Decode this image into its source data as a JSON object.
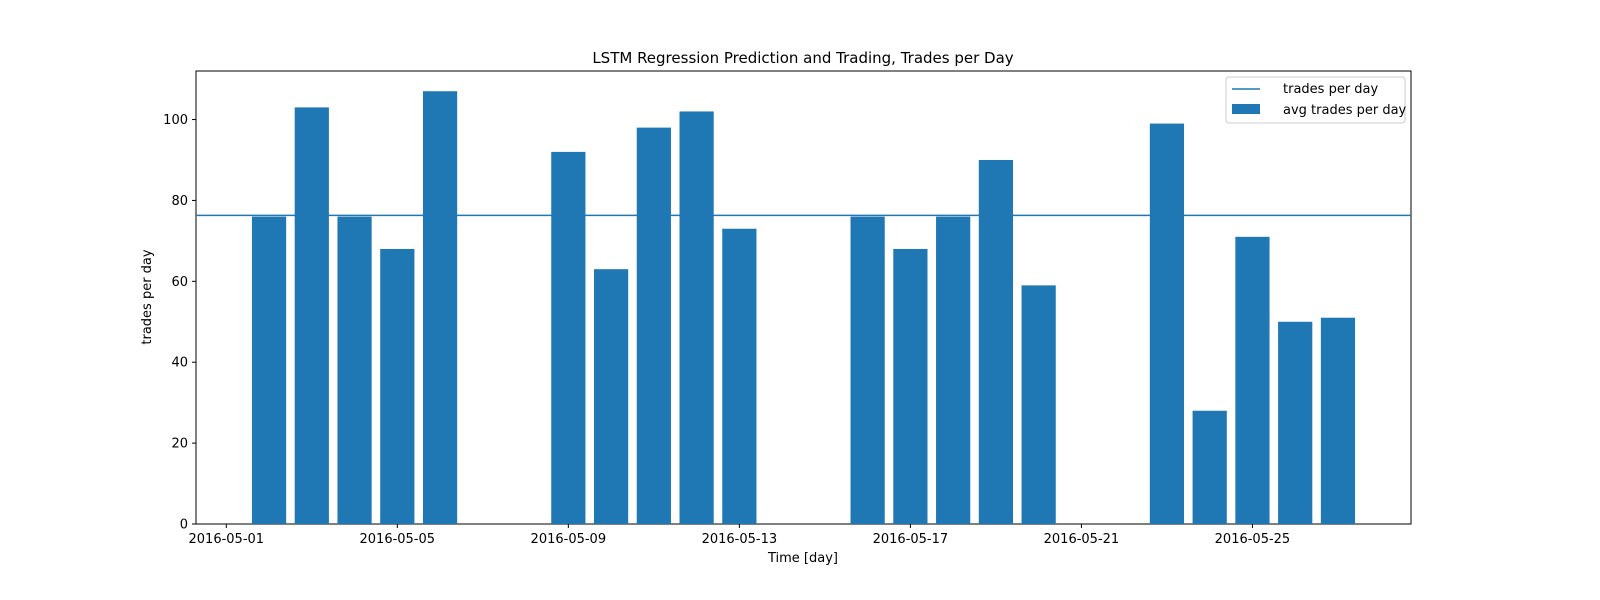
{
  "chart_data": {
    "type": "bar",
    "title": "LSTM Regression Prediction and Trading, Trades per Day",
    "xlabel": "Time [day]",
    "ylabel": "trades per day",
    "ylim": [
      0,
      112
    ],
    "xlim": [
      "2016-04-30T07:00",
      "2016-05-28T17:00"
    ],
    "yticks": [
      0,
      20,
      40,
      60,
      80,
      100
    ],
    "xticks": [
      "2016-05-01",
      "2016-05-05",
      "2016-05-09",
      "2016-05-13",
      "2016-05-17",
      "2016-05-21",
      "2016-05-25"
    ],
    "bar_color": "#1f77b4",
    "bars": [
      {
        "x": "2016-05-02",
        "y": 76
      },
      {
        "x": "2016-05-03",
        "y": 103
      },
      {
        "x": "2016-05-04",
        "y": 76
      },
      {
        "x": "2016-05-05",
        "y": 68
      },
      {
        "x": "2016-05-06",
        "y": 107
      },
      {
        "x": "2016-05-09",
        "y": 92
      },
      {
        "x": "2016-05-10",
        "y": 63
      },
      {
        "x": "2016-05-11",
        "y": 98
      },
      {
        "x": "2016-05-12",
        "y": 102
      },
      {
        "x": "2016-05-13",
        "y": 73
      },
      {
        "x": "2016-05-16",
        "y": 76
      },
      {
        "x": "2016-05-17",
        "y": 68
      },
      {
        "x": "2016-05-18",
        "y": 76
      },
      {
        "x": "2016-05-19",
        "y": 90
      },
      {
        "x": "2016-05-20",
        "y": 59
      },
      {
        "x": "2016-05-23",
        "y": 99
      },
      {
        "x": "2016-05-24",
        "y": 28
      },
      {
        "x": "2016-05-25",
        "y": 71
      },
      {
        "x": "2016-05-26",
        "y": 50
      },
      {
        "x": "2016-05-27",
        "y": 51
      }
    ],
    "hline": {
      "y": 76.3,
      "color": "#1f77b4"
    },
    "legend": {
      "placement": "top-right",
      "entries": [
        {
          "label": "trades per day",
          "kind": "line"
        },
        {
          "label": "avg trades per day",
          "kind": "bar"
        }
      ]
    },
    "grid": false
  }
}
